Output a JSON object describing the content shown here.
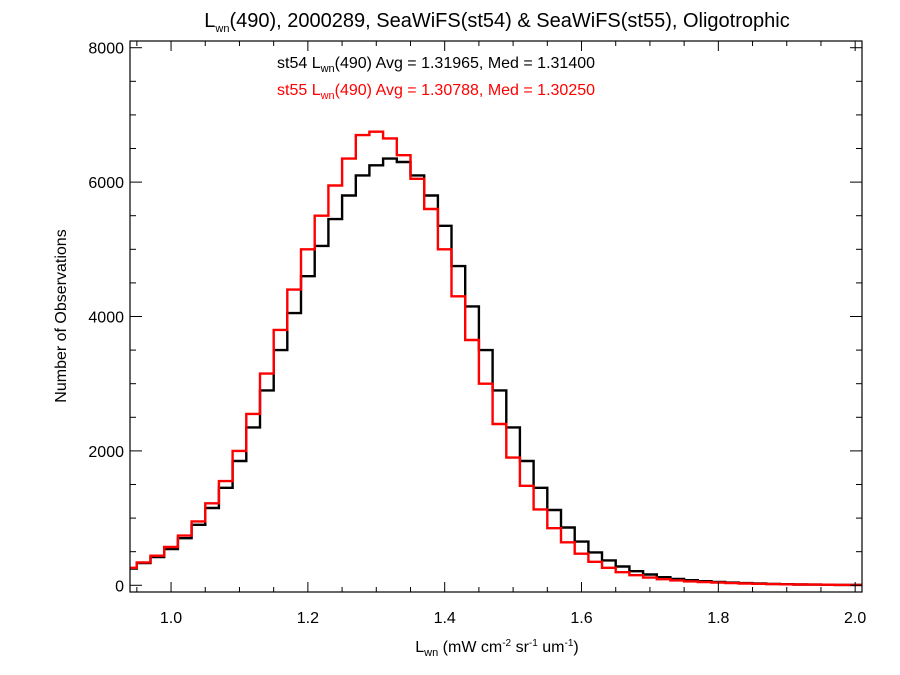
{
  "chart_data": {
    "type": "line",
    "style": "step-histogram",
    "title": {
      "prefix": "L",
      "sub": "wn",
      "rest": "(490), 2000289, SeaWiFS(st54) & SeaWiFS(st55), Oligotrophic"
    },
    "xlabel": {
      "base": "L",
      "sub": "wn",
      "t1": " (mW cm",
      "sup1": "-2",
      "t2": " sr",
      "sup2": "-1",
      "t3": " um",
      "sup3": "-1",
      "t4": ")"
    },
    "ylabel": "Number of Observations",
    "xlim": [
      0.94,
      2.01
    ],
    "ylim": [
      -100,
      8100
    ],
    "xticks": [
      "1.0",
      "1.2",
      "1.4",
      "1.6",
      "1.8",
      "2.0"
    ],
    "yticks": [
      "0",
      "2000",
      "4000",
      "6000",
      "8000"
    ],
    "grid": false,
    "series": [
      {
        "name": "st54",
        "color": "#000000",
        "label": {
          "pre": "st54 L",
          "sub": "wn",
          "post": "(490) Avg = 1.31965, Med = 1.31400"
        },
        "x": [
          0.94,
          0.96,
          0.98,
          1.0,
          1.02,
          1.04,
          1.06,
          1.08,
          1.1,
          1.12,
          1.14,
          1.16,
          1.18,
          1.2,
          1.22,
          1.24,
          1.26,
          1.28,
          1.3,
          1.32,
          1.34,
          1.36,
          1.38,
          1.4,
          1.42,
          1.44,
          1.46,
          1.48,
          1.5,
          1.52,
          1.54,
          1.56,
          1.58,
          1.6,
          1.62,
          1.64,
          1.66,
          1.68,
          1.7,
          1.72,
          1.74,
          1.76,
          1.78,
          1.8,
          1.82,
          1.84,
          1.86,
          1.88,
          1.9,
          1.92,
          1.94,
          1.96,
          1.98,
          2.0
        ],
        "y": [
          250,
          330,
          420,
          540,
          700,
          900,
          1150,
          1450,
          1850,
          2350,
          2900,
          3500,
          4050,
          4600,
          5050,
          5450,
          5800,
          6100,
          6250,
          6350,
          6300,
          6100,
          5800,
          5350,
          4750,
          4150,
          3500,
          2900,
          2350,
          1850,
          1450,
          1120,
          860,
          650,
          490,
          370,
          280,
          210,
          160,
          120,
          95,
          75,
          60,
          50,
          40,
          32,
          26,
          20,
          16,
          12,
          10,
          8,
          6,
          5
        ]
      },
      {
        "name": "st55",
        "color": "#ff0000",
        "label": {
          "pre": "st55 L",
          "sub": "wn",
          "post": "(490) Avg = 1.30788, Med = 1.30250"
        },
        "x": [
          0.94,
          0.96,
          0.98,
          1.0,
          1.02,
          1.04,
          1.06,
          1.08,
          1.1,
          1.12,
          1.14,
          1.16,
          1.18,
          1.2,
          1.22,
          1.24,
          1.26,
          1.28,
          1.3,
          1.32,
          1.34,
          1.36,
          1.38,
          1.4,
          1.42,
          1.44,
          1.46,
          1.48,
          1.5,
          1.52,
          1.54,
          1.56,
          1.58,
          1.6,
          1.62,
          1.64,
          1.66,
          1.68,
          1.7,
          1.72,
          1.74,
          1.76,
          1.78,
          1.8,
          1.82,
          1.84,
          1.86,
          1.88,
          1.9,
          1.92,
          1.94,
          1.96,
          1.98,
          2.0
        ],
        "y": [
          260,
          340,
          440,
          570,
          740,
          950,
          1220,
          1550,
          2000,
          2550,
          3150,
          3800,
          4400,
          5000,
          5500,
          5950,
          6350,
          6700,
          6750,
          6650,
          6400,
          6050,
          5600,
          5000,
          4300,
          3650,
          3000,
          2400,
          1900,
          1480,
          1130,
          850,
          640,
          470,
          350,
          260,
          195,
          150,
          115,
          90,
          72,
          58,
          48,
          40,
          33,
          27,
          22,
          18,
          15,
          12,
          10,
          8,
          6,
          5
        ]
      }
    ]
  }
}
